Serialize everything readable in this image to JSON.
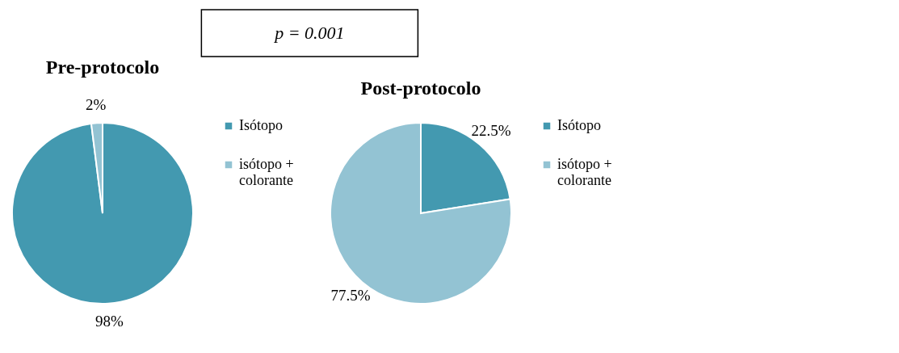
{
  "chart_data": [
    {
      "type": "pie",
      "title": "Pre-protocolo",
      "categories": [
        "Isótopo",
        "isótopo + colorante"
      ],
      "values": [
        98,
        2
      ],
      "colors": [
        "#4399b0",
        "#93c3d3"
      ],
      "value_labels": [
        "98%",
        "2%"
      ],
      "legend": "right",
      "annotations": [
        "p = 0.001"
      ]
    },
    {
      "type": "pie",
      "title": "Post-protocolo",
      "categories": [
        "Isótopo",
        "isótopo + colorante"
      ],
      "values": [
        22.5,
        77.5
      ],
      "colors": [
        "#4399b0",
        "#93c3d3"
      ],
      "value_labels": [
        "22.5%",
        "77.5%"
      ],
      "legend": "right"
    }
  ]
}
